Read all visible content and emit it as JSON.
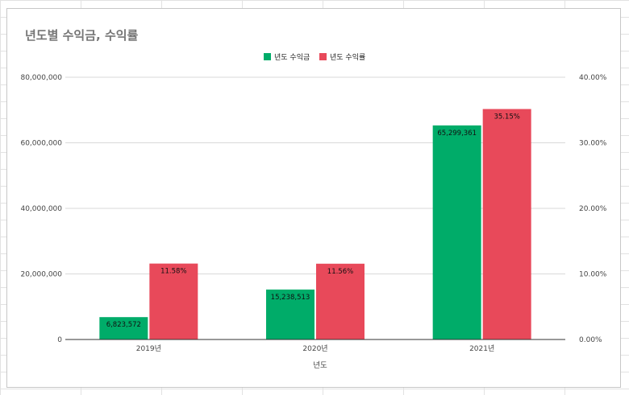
{
  "chart_data": {
    "type": "bar",
    "title": "년도별 수익금, 수익률",
    "xlabel": "년도",
    "ylabel": "",
    "categories": [
      "2019년",
      "2020년",
      "2021년"
    ],
    "series": [
      {
        "name": "년도 수익금",
        "axis": "left",
        "color": "#00ac69",
        "values": [
          6823572,
          15238513,
          65299361
        ],
        "labels": [
          "6,823,572",
          "15,238,513",
          "65,299,361"
        ]
      },
      {
        "name": "년도 수익률",
        "axis": "right",
        "color": "#e8495a",
        "values": [
          11.58,
          11.56,
          35.15
        ],
        "labels": [
          "11.58%",
          "11.56%",
          "35.15%"
        ]
      }
    ],
    "left_axis": {
      "ylim": [
        0,
        80000000
      ],
      "ticks": [
        0,
        20000000,
        40000000,
        60000000,
        80000000
      ],
      "tick_labels": [
        "0",
        "20,000,000",
        "40,000,000",
        "60,000,000",
        "80,000,000"
      ]
    },
    "right_axis": {
      "ylim": [
        0,
        40
      ],
      "ticks": [
        0,
        10,
        20,
        30,
        40
      ],
      "tick_labels": [
        "0.00%",
        "10.00%",
        "20.00%",
        "30.00%",
        "40.00%"
      ]
    },
    "grid": true,
    "legend_position": "top-center"
  }
}
